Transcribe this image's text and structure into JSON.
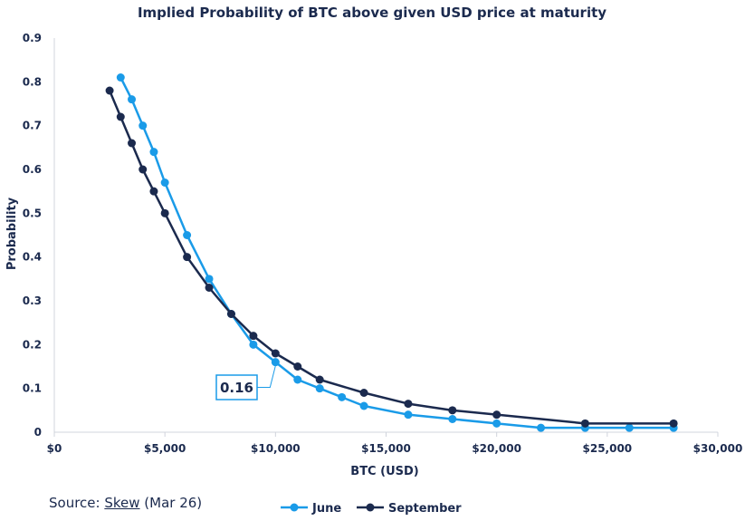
{
  "chart_data": {
    "type": "line",
    "title": "Implied Probability of BTC above given USD price at maturity",
    "xlabel": "BTC (USD)",
    "ylabel": "Probability",
    "xlim": [
      0,
      30000
    ],
    "ylim": [
      0,
      0.9
    ],
    "x_ticks": [
      "$0",
      "$5,000",
      "$10,000",
      "$15,000",
      "$20,000",
      "$25,000",
      "$30,000"
    ],
    "x_tick_values": [
      0,
      5000,
      10000,
      15000,
      20000,
      25000,
      30000
    ],
    "y_ticks": [
      "0",
      "0.1",
      "0.2",
      "0.3",
      "0.4",
      "0.5",
      "0.6",
      "0.7",
      "0.8",
      "0.9"
    ],
    "y_tick_values": [
      0,
      0.1,
      0.2,
      0.3,
      0.4,
      0.5,
      0.6,
      0.7,
      0.8,
      0.9
    ],
    "grid": false,
    "legend_position": "bottom",
    "series": [
      {
        "name": "June",
        "color": "#1a9be8",
        "x": [
          3000,
          3500,
          4000,
          4500,
          5000,
          6000,
          7000,
          8000,
          9000,
          10000,
          11000,
          12000,
          13000,
          14000,
          16000,
          18000,
          20000,
          22000,
          24000,
          26000,
          28000
        ],
        "y": [
          0.81,
          0.76,
          0.7,
          0.64,
          0.57,
          0.45,
          0.35,
          0.27,
          0.2,
          0.16,
          0.12,
          0.1,
          0.08,
          0.06,
          0.04,
          0.03,
          0.02,
          0.01,
          0.01,
          0.01,
          0.01
        ]
      },
      {
        "name": "September",
        "color": "#1b2a4e",
        "x": [
          2500,
          3000,
          3500,
          4000,
          4500,
          5000,
          6000,
          7000,
          8000,
          9000,
          10000,
          11000,
          12000,
          14000,
          16000,
          18000,
          20000,
          24000,
          28000
        ],
        "y": [
          0.78,
          0.72,
          0.66,
          0.6,
          0.55,
          0.5,
          0.4,
          0.33,
          0.27,
          0.22,
          0.18,
          0.15,
          0.12,
          0.09,
          0.065,
          0.05,
          0.04,
          0.02,
          0.02
        ]
      }
    ],
    "annotations": [
      {
        "text": "0.16",
        "x": 10000,
        "y": 0.16,
        "series": "June"
      }
    ]
  },
  "source": {
    "prefix": "Source: ",
    "link": "Skew",
    "suffix": " (Mar 26)"
  }
}
